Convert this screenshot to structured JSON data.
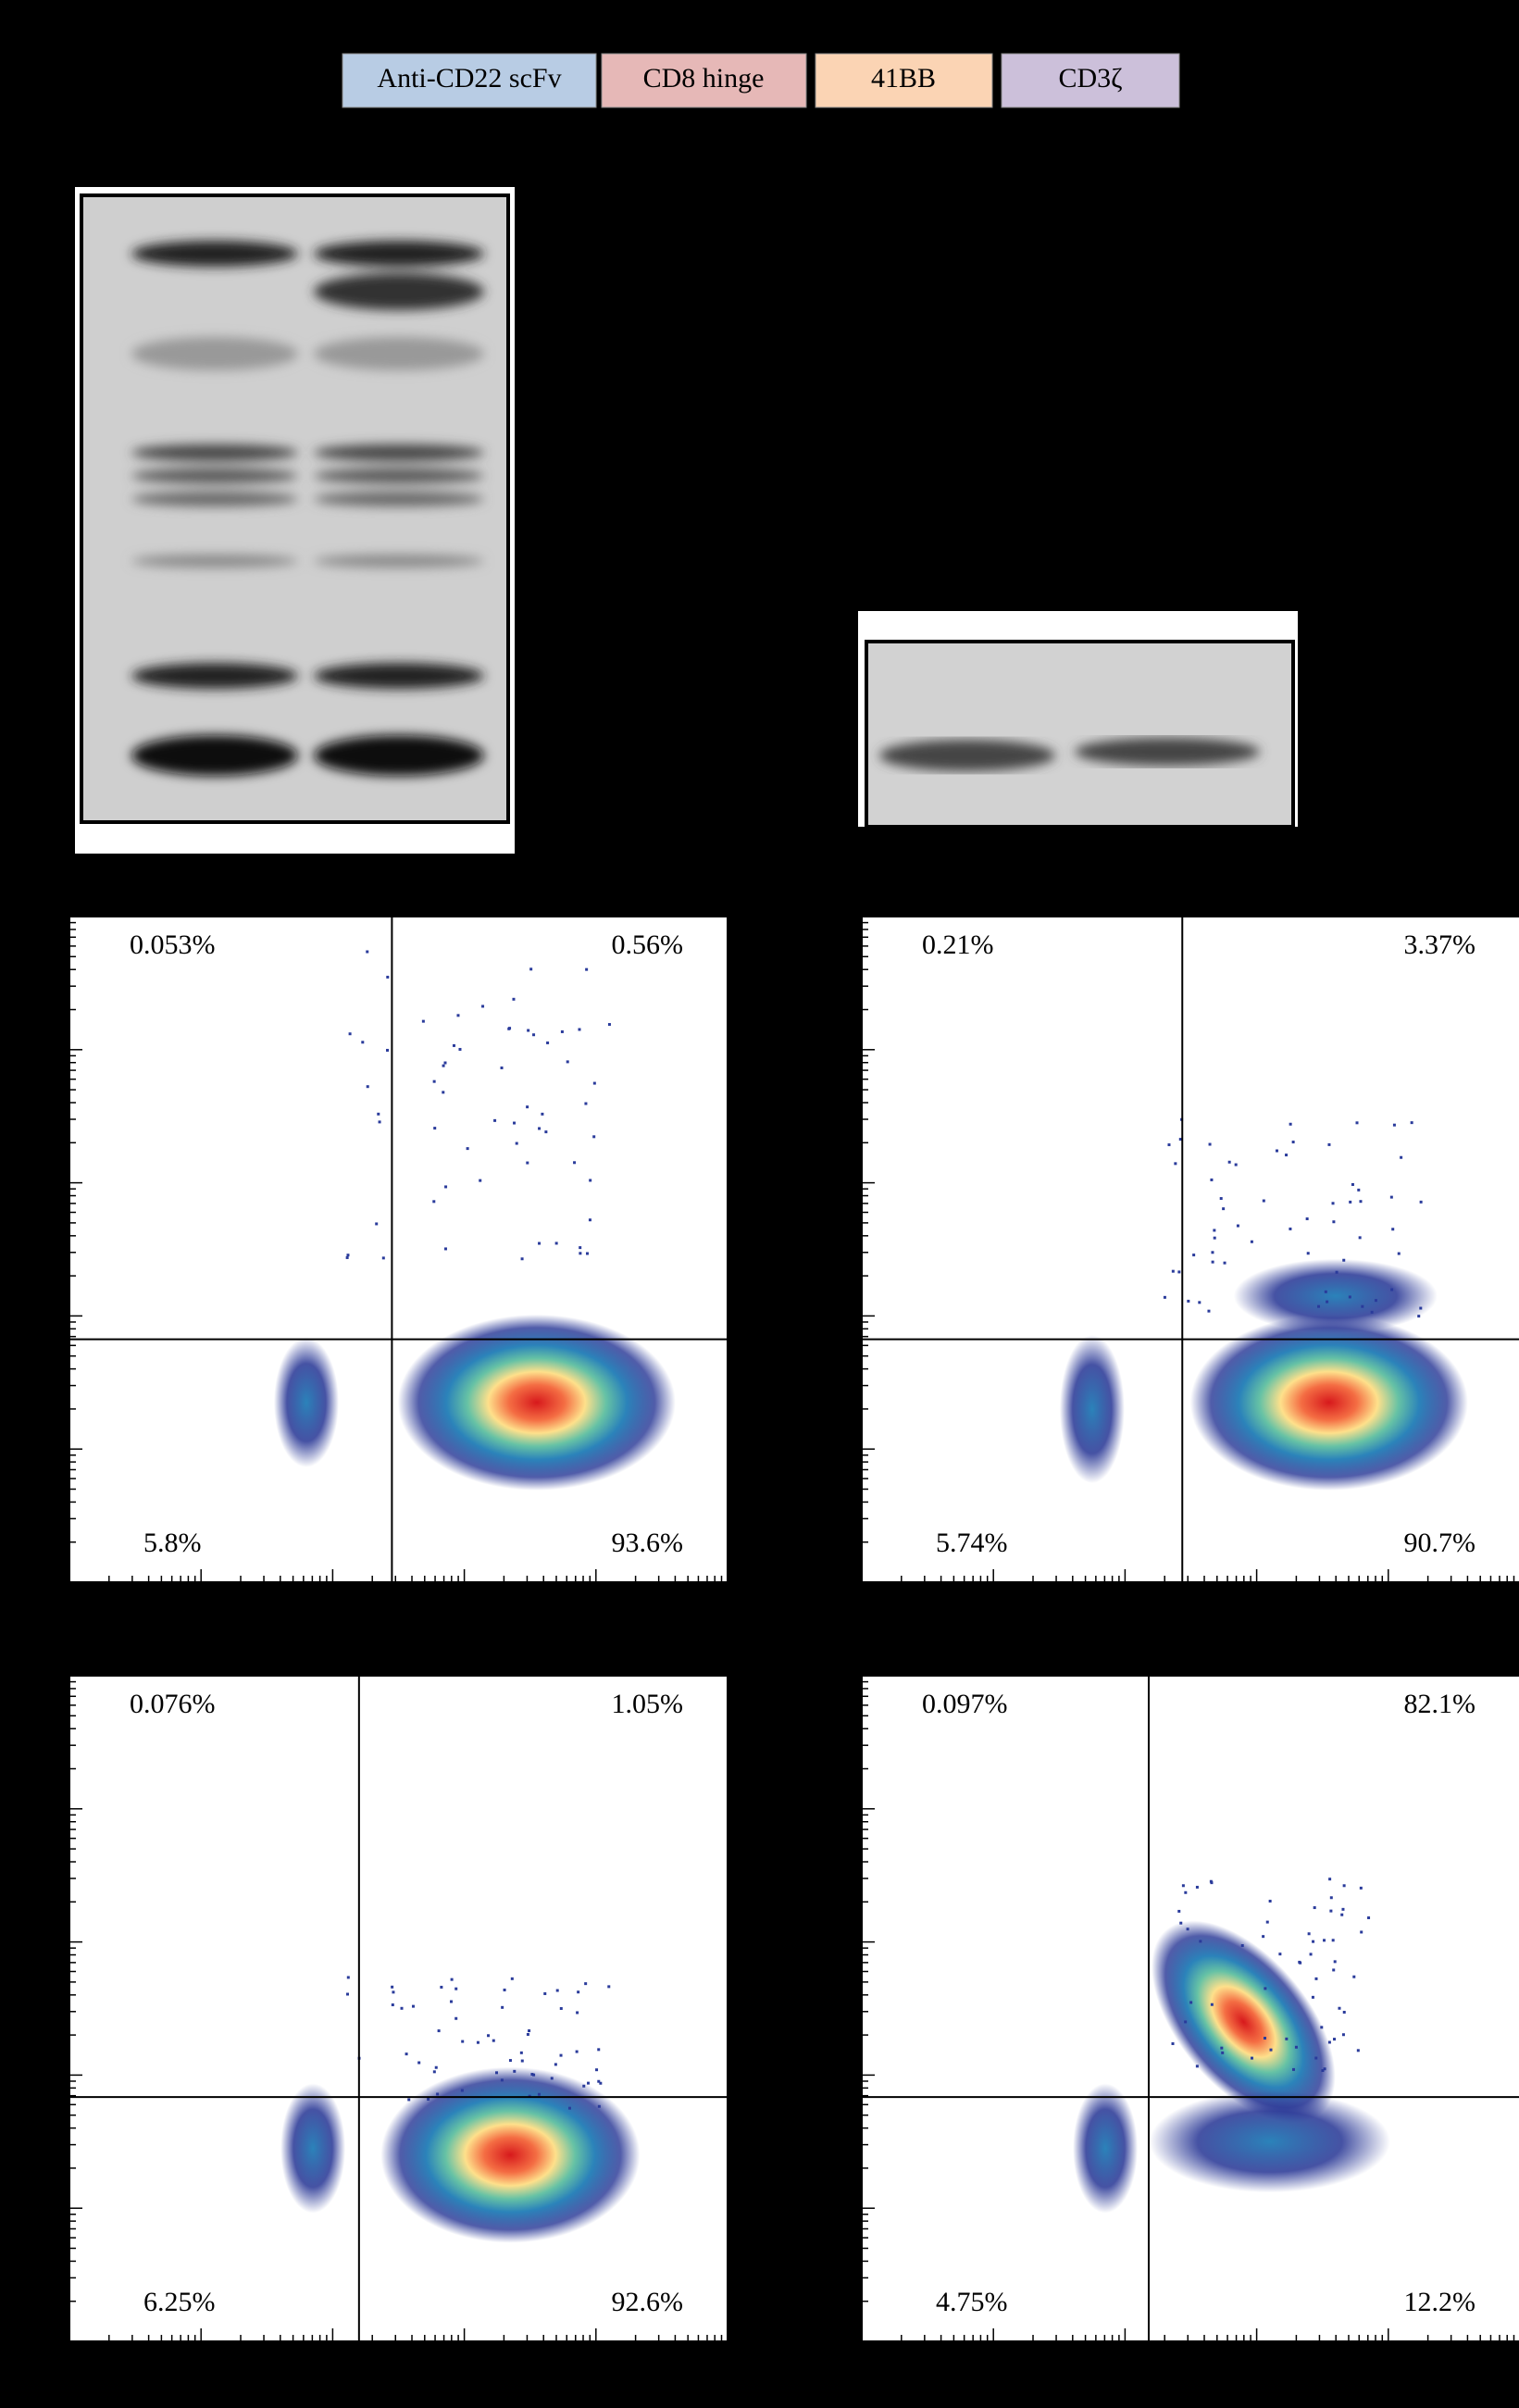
{
  "construct": [
    "Anti-CD22 scFv",
    "CD8 hinge",
    "41BB",
    "CD3ζ"
  ],
  "plots": [
    {
      "upper_left": "0.053%",
      "upper_right": "0.56%",
      "lower_left": "5.8%",
      "lower_right": "93.6%"
    },
    {
      "upper_left": "0.21%",
      "upper_right": "3.37%",
      "lower_left": "5.74%",
      "lower_right": "90.7%"
    },
    {
      "upper_left": "0.076%",
      "upper_right": "1.05%",
      "lower_left": "6.25%",
      "lower_right": "92.6%"
    },
    {
      "upper_left": "0.097%",
      "upper_right": "82.1%",
      "lower_left": "4.75%",
      "lower_right": "12.2%"
    }
  ]
}
